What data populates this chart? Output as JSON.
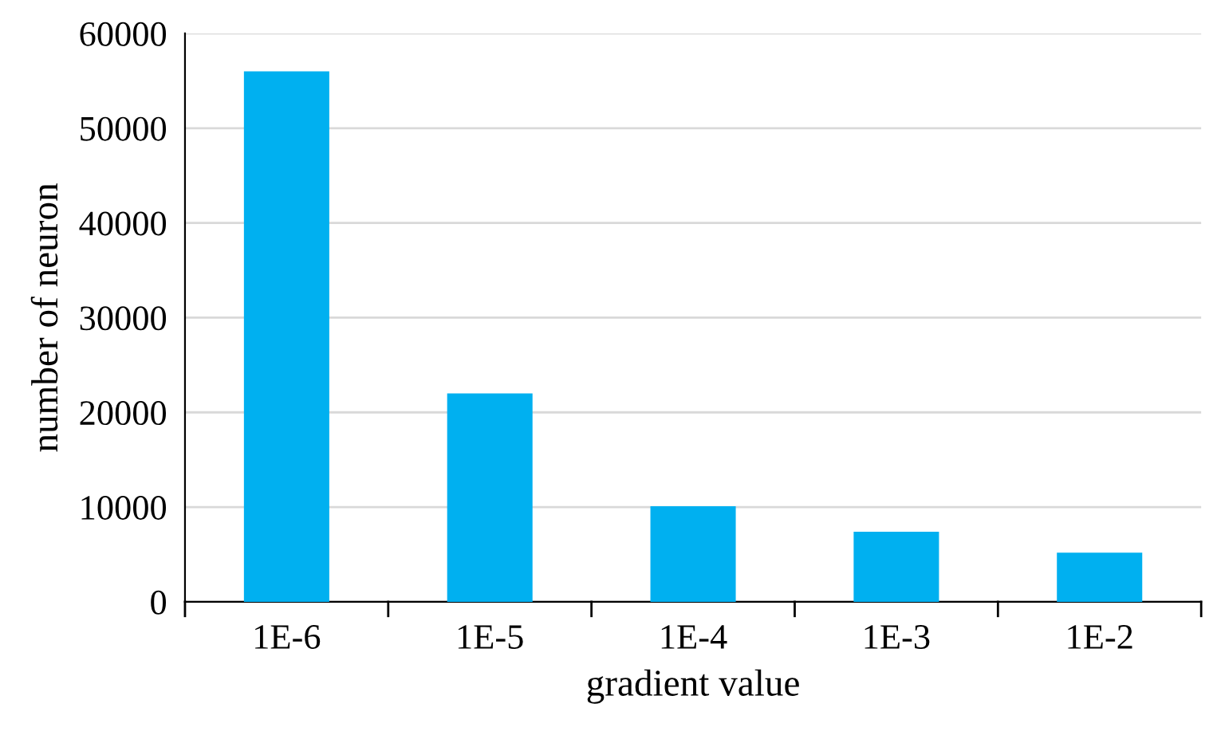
{
  "chart_data": {
    "type": "bar",
    "xlabel": "gradient value",
    "ylabel": "number of neuron",
    "categories": [
      "1E-6",
      "1E-5",
      "1E-4",
      "1E-3",
      "1E-2"
    ],
    "values": [
      56000,
      22000,
      10100,
      7400,
      5200
    ],
    "color": "#00b0f0",
    "ylim": [
      0,
      60000
    ],
    "yticks": [
      0,
      10000,
      20000,
      30000,
      40000,
      50000,
      60000
    ],
    "grid": "y",
    "legend": false
  }
}
